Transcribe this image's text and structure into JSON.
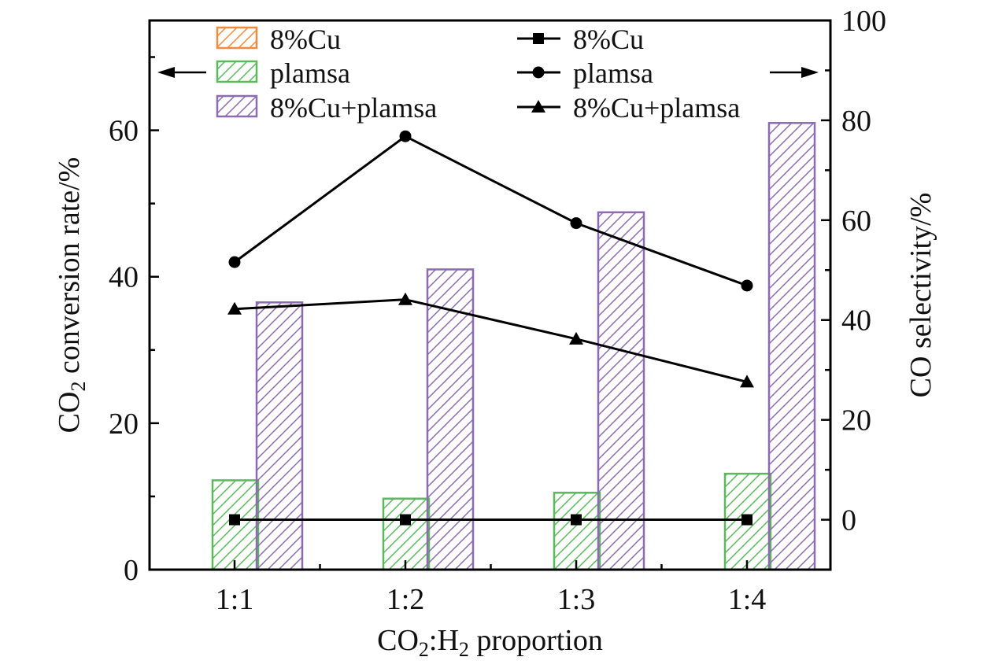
{
  "chart_data": {
    "type": "bar",
    "categories": [
      "1:1",
      "1:2",
      "1:3",
      "1:4"
    ],
    "xlabel": {
      "parts": [
        {
          "t": "CO"
        },
        {
          "t": "2",
          "sub": true
        },
        {
          "t": ":H"
        },
        {
          "t": "2",
          "sub": true
        },
        {
          "t": " proportion"
        }
      ]
    },
    "ylabel_left": {
      "parts": [
        {
          "t": "CO"
        },
        {
          "t": "2",
          "sub": true
        },
        {
          "t": " conversion rate/%"
        }
      ]
    },
    "ylabel_right": "CO selectivity/%",
    "ylim_left": [
      0,
      75
    ],
    "yticks_left": [
      0,
      20,
      40,
      60
    ],
    "ylim_right": [
      -10,
      100
    ],
    "yticks_right": [
      0,
      20,
      40,
      60,
      80,
      100
    ],
    "bar_series": [
      {
        "name": "8%Cu",
        "color": "#f08a3c",
        "hatch": true,
        "values": [
          0,
          0,
          0,
          0
        ]
      },
      {
        "name": "plamsa",
        "color": "#5cb85c",
        "hatch": true,
        "values": [
          12.2,
          9.7,
          10.5,
          13.1
        ]
      },
      {
        "name": "8%Cu+plamsa",
        "color": "#8c6bb1",
        "hatch": true,
        "values": [
          36.5,
          41.0,
          48.8,
          61.0
        ]
      }
    ],
    "line_series": [
      {
        "name": "8%Cu",
        "marker": "square",
        "color": "#000000",
        "values": [
          0,
          0,
          0,
          0
        ]
      },
      {
        "name": "plamsa",
        "marker": "circle",
        "color": "#000000",
        "values": [
          51.6,
          76.8,
          59.4,
          46.9
        ]
      },
      {
        "name": "8%Cu+plamsa",
        "marker": "triangle",
        "color": "#000000",
        "values": [
          42.2,
          44.1,
          36.2,
          27.6
        ]
      }
    ],
    "axis_indicators": [
      "left",
      "right"
    ],
    "legend_position": "top"
  }
}
